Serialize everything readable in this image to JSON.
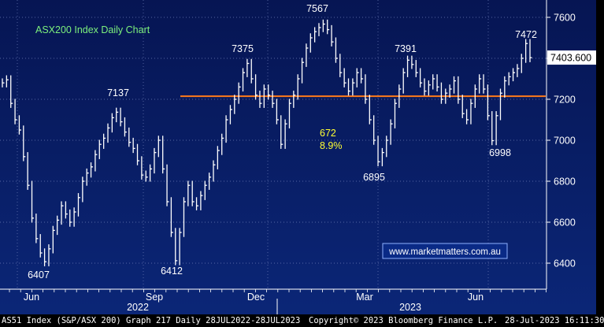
{
  "chart_data": {
    "type": "line",
    "title": "ASX200 Index Daily Chart",
    "watermark": "www.marketmatters.com.au",
    "last_price": "7403.600",
    "y_ticks": [
      6400,
      6600,
      6800,
      7000,
      7200,
      7400,
      7600
    ],
    "ylim": [
      6320,
      7720
    ],
    "x_month_labels": [
      "Jun",
      "Sep",
      "Dec",
      "Mar",
      "Jun"
    ],
    "x_year_labels": [
      "2022",
      "2023"
    ],
    "horizontal_level": 7215,
    "annotation": {
      "points": "672",
      "pct": "8.9%"
    },
    "peak_labels": [
      {
        "text": "6407",
        "value": 6407
      },
      {
        "text": "7137",
        "value": 7137
      },
      {
        "text": "6412",
        "value": 6412
      },
      {
        "text": "7375",
        "value": 7375
      },
      {
        "text": "7567",
        "value": 7567
      },
      {
        "text": "6895",
        "value": 6895
      },
      {
        "text": "7391",
        "value": 7391
      },
      {
        "text": "6998",
        "value": 6998
      },
      {
        "text": "7472",
        "value": 7472
      }
    ],
    "series": [
      {
        "values": [
          7280,
          7295,
          7180,
          7100,
          7050,
          6920,
          6780,
          6620,
          6520,
          6450,
          6407,
          6470,
          6560,
          6610,
          6680,
          6640,
          6600,
          6650,
          6720,
          6800,
          6840,
          6870,
          6930,
          6980,
          7010,
          7060,
          7110,
          7137,
          7090,
          7040,
          6990,
          6960,
          6900,
          6830,
          6820,
          6860,
          6940,
          7000,
          6860,
          6700,
          6550,
          6412,
          6550,
          6700,
          6780,
          6700,
          6680,
          6730,
          6780,
          6820,
          6880,
          6950,
          7010,
          7100,
          7150,
          7200,
          7260,
          7330,
          7375,
          7300,
          7220,
          7180,
          7250,
          7220,
          7180,
          7100,
          6980,
          7080,
          7180,
          7220,
          7300,
          7380,
          7450,
          7500,
          7530,
          7550,
          7567,
          7540,
          7480,
          7400,
          7330,
          7280,
          7240,
          7280,
          7330,
          7300,
          7200,
          7100,
          7000,
          6895,
          6940,
          7000,
          7080,
          7180,
          7250,
          7330,
          7391,
          7370,
          7330,
          7280,
          7240,
          7270,
          7300,
          7260,
          7200,
          7230,
          7250,
          7290,
          7200,
          7130,
          7100,
          7180,
          7250,
          7300,
          7250,
          7120,
          6998,
          7120,
          7230,
          7290,
          7310,
          7330,
          7350,
          7400,
          7472,
          7403
        ]
      }
    ]
  },
  "footer": {
    "left": "AS51 Index (S&P/ASX 200) Graph 217  Daily 28JUL2022-28JUL2023",
    "center": "Copyright© 2023 Bloomberg Finance L.P.",
    "right": "28-Jul-2023 16:11:30"
  }
}
